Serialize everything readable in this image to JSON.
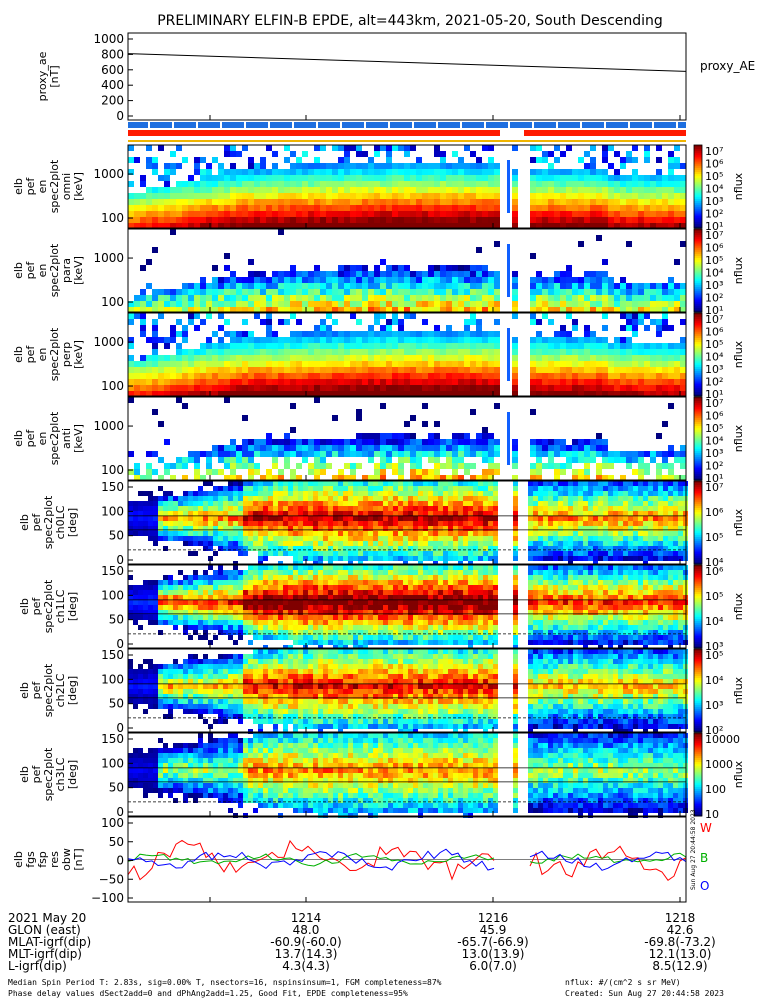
{
  "title": "PRELIMINARY ELFIN-B EPDE, alt=443km, 2021-05-20, South Descending",
  "colors": {
    "blue_bar": "#1e6fe0",
    "red_bar": "#ff1a00",
    "gold_line": "#f0b400",
    "w_color": "#ff0000",
    "b_color": "#00b000",
    "o_color": "#0000ff"
  },
  "side_labels": {
    "proxy_ae": "proxy_AE",
    "w": "W",
    "b": "B",
    "o": "O"
  },
  "stamp": "Sun Aug 27 20:44:58 2023",
  "panels": [
    {
      "id": "proxy-ae",
      "ylabel": [
        "proxy_ae",
        "[nT]"
      ],
      "ticks": [
        "1000",
        "800",
        "600",
        "400",
        "200",
        "0"
      ],
      "type": "line"
    },
    {
      "id": "en-omni",
      "ylabel": [
        "elb",
        "pef",
        "en",
        "spec2plot",
        "omni",
        "[keV]"
      ],
      "ticks": [
        "1000",
        "100"
      ],
      "cbar": [
        "10⁷",
        "10⁶",
        "10⁵",
        "10⁴",
        "10³",
        "10²",
        "10¹"
      ],
      "unit": "nflux"
    },
    {
      "id": "en-para",
      "ylabel": [
        "elb",
        "pef",
        "en",
        "spec2plot",
        "para",
        "[keV]"
      ],
      "ticks": [
        "1000",
        "100"
      ],
      "cbar": [
        "10⁷",
        "10⁶",
        "10⁵",
        "10⁴",
        "10³",
        "10²",
        "10¹"
      ],
      "unit": "nflux"
    },
    {
      "id": "en-perp",
      "ylabel": [
        "elb",
        "pef",
        "en",
        "spec2plot",
        "perp",
        "[keV]"
      ],
      "ticks": [
        "1000",
        "100"
      ],
      "cbar": [
        "10⁷",
        "10⁶",
        "10⁵",
        "10⁴",
        "10³",
        "10²",
        "10¹"
      ],
      "unit": "nflux"
    },
    {
      "id": "en-anti",
      "ylabel": [
        "elb",
        "pef",
        "en",
        "spec2plot",
        "anti",
        "[keV]"
      ],
      "ticks": [
        "1000",
        "100"
      ],
      "cbar": [
        "10⁷",
        "10⁶",
        "10⁵",
        "10⁴",
        "10³",
        "10²",
        "10¹"
      ],
      "unit": "nflux"
    },
    {
      "id": "pa-ch0",
      "ylabel": [
        "elb",
        "pef",
        "spec2plot",
        "ch0LC",
        "[deg]"
      ],
      "ticks": [
        "150",
        "100",
        "50",
        "0"
      ],
      "cbar": [
        "10⁷",
        "10⁶",
        "10⁵",
        "10⁴"
      ],
      "unit": "nflux"
    },
    {
      "id": "pa-ch1",
      "ylabel": [
        "elb",
        "pef",
        "spec2plot",
        "ch1LC",
        "[deg]"
      ],
      "ticks": [
        "150",
        "100",
        "50",
        "0"
      ],
      "cbar": [
        "10⁶",
        "10⁵",
        "10⁴",
        "10³"
      ],
      "unit": "nflux"
    },
    {
      "id": "pa-ch2",
      "ylabel": [
        "elb",
        "pef",
        "spec2plot",
        "ch2LC",
        "[deg]"
      ],
      "ticks": [
        "150",
        "100",
        "50",
        "0"
      ],
      "cbar": [
        "10⁵",
        "10⁴",
        "10³",
        "10²"
      ],
      "unit": "nflux"
    },
    {
      "id": "pa-ch3",
      "ylabel": [
        "elb",
        "pef",
        "spec2plot",
        "ch3LC",
        "[deg]"
      ],
      "ticks": [
        "150",
        "100",
        "50",
        "0"
      ],
      "cbar": [
        "10000",
        "1000",
        "100",
        "10"
      ],
      "unit": "nflux"
    },
    {
      "id": "fgs",
      "ylabel": [
        "elb",
        "fgs",
        "fsp",
        "res",
        "obw",
        "[nT]"
      ],
      "ticks": [
        "100",
        "50",
        "0",
        "−50",
        "−100"
      ],
      "type": "line"
    }
  ],
  "chart_data": {
    "type": "heatmap",
    "title": "PRELIMINARY ELFIN-B EPDE, alt=443km, 2021-05-20, South Descending",
    "x_times": [
      "1214",
      "1216",
      "1218"
    ],
    "proxy_ae": {
      "start": 790,
      "end": 565,
      "ylim": [
        0,
        1000
      ]
    },
    "fgs_series": [
      {
        "name": "W"
      },
      {
        "name": "B"
      },
      {
        "name": "O"
      }
    ],
    "fgs_ylim": [
      -100,
      100
    ]
  },
  "footer": {
    "rows": [
      {
        "label": "2021 May 20",
        "values": [
          "1214",
          "1216",
          "1218"
        ]
      },
      {
        "label": "GLON (east)",
        "values": [
          "48.0",
          "45.9",
          "42.6"
        ]
      },
      {
        "label": "MLAT-igrf(dip)",
        "values": [
          "-60.9(-60.0)",
          "-65.7(-66.9)",
          "-69.8(-73.2)"
        ]
      },
      {
        "label": "MLT-igrf(dip)",
        "values": [
          "13.7(14.3)",
          "13.0(13.9)",
          "12.1(13.0)"
        ]
      },
      {
        "label": "L-igrf(dip)",
        "values": [
          "4.3(4.3)",
          "6.0(7.0)",
          "8.5(12.9)"
        ]
      }
    ],
    "note1": "Median Spin Period T: 2.83s, sig=0.00% T, nsectors=16, nspinsinsum=1, FGM completeness=87%",
    "note2": "Phase delay values dSect2add=0 and dPhAng2add=1.25, Good Fit, EPDE completeness=95%",
    "nflux_units": "nflux: #/(cm^2 s sr MeV)",
    "created": "Created: Sun Aug 27 20:44:58 2023"
  }
}
